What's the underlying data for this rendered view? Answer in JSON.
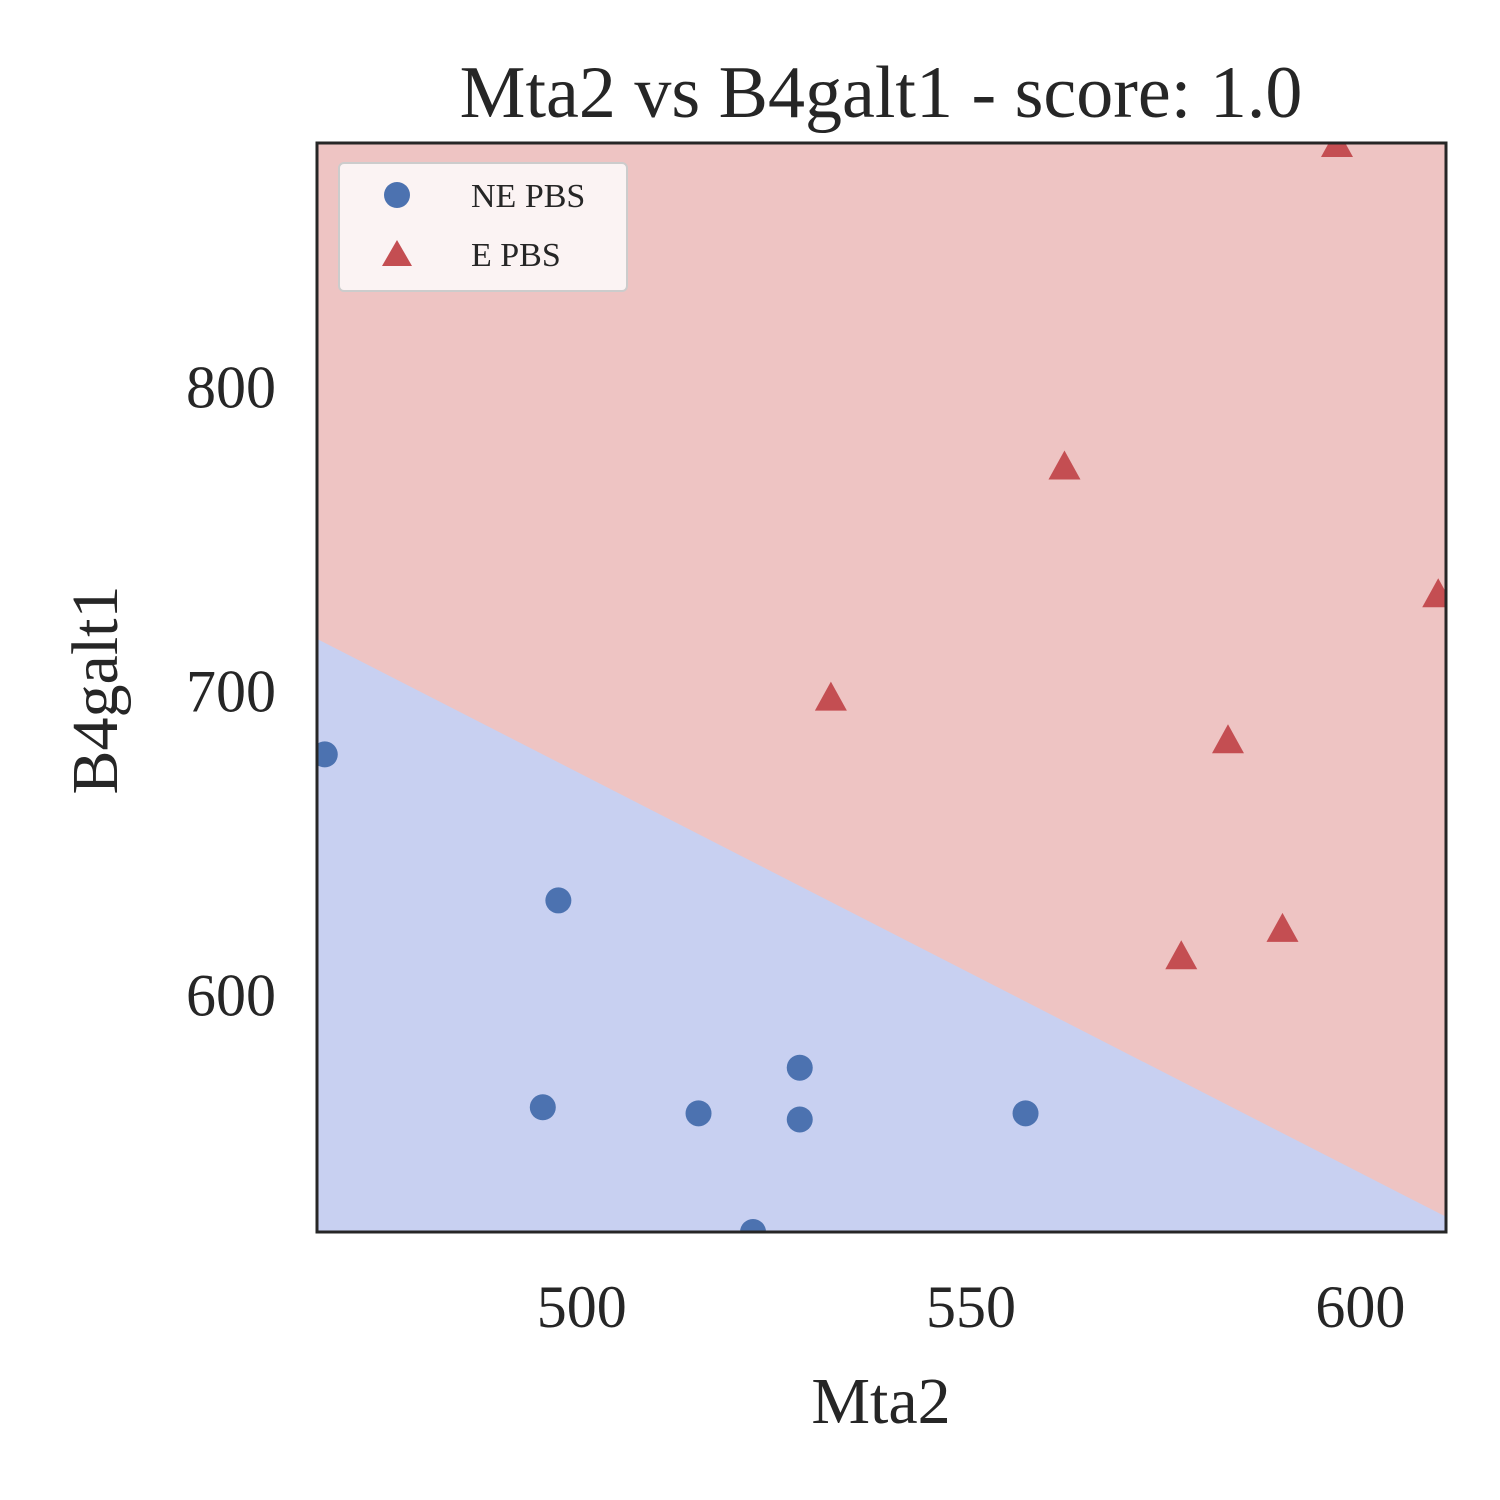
{
  "chart_data": {
    "type": "scatter",
    "title": "Mta2 vs B4galt1 - score: 1.0",
    "xlabel": "Mta2",
    "ylabel": "B4galt1",
    "xlim": [
      466,
      611
    ],
    "ylim": [
      522,
      880
    ],
    "xticks": [
      500,
      550,
      600
    ],
    "yticks": [
      600,
      700,
      800
    ],
    "grid": false,
    "legend_position": "top-left",
    "decision_boundary": {
      "description_points": [
        [
          466,
          717
        ],
        [
          611,
          527
        ]
      ],
      "region_above_color": "#eec4c3",
      "region_below_color": "#c8d0f1"
    },
    "series": [
      {
        "name": "NE PBS",
        "marker": "circle",
        "color": "#4c72b0",
        "points": [
          [
            467,
            679
          ],
          [
            497,
            631
          ],
          [
            495,
            563
          ],
          [
            515,
            561
          ],
          [
            528,
            576
          ],
          [
            528,
            559
          ],
          [
            522,
            522
          ],
          [
            557,
            561
          ]
        ]
      },
      {
        "name": "E PBS",
        "marker": "triangle",
        "color": "#c44e52",
        "points": [
          [
            597,
            879
          ],
          [
            562,
            773
          ],
          [
            610,
            731
          ],
          [
            532,
            697
          ],
          [
            583,
            683
          ],
          [
            590,
            621
          ],
          [
            577,
            612
          ]
        ]
      }
    ]
  }
}
